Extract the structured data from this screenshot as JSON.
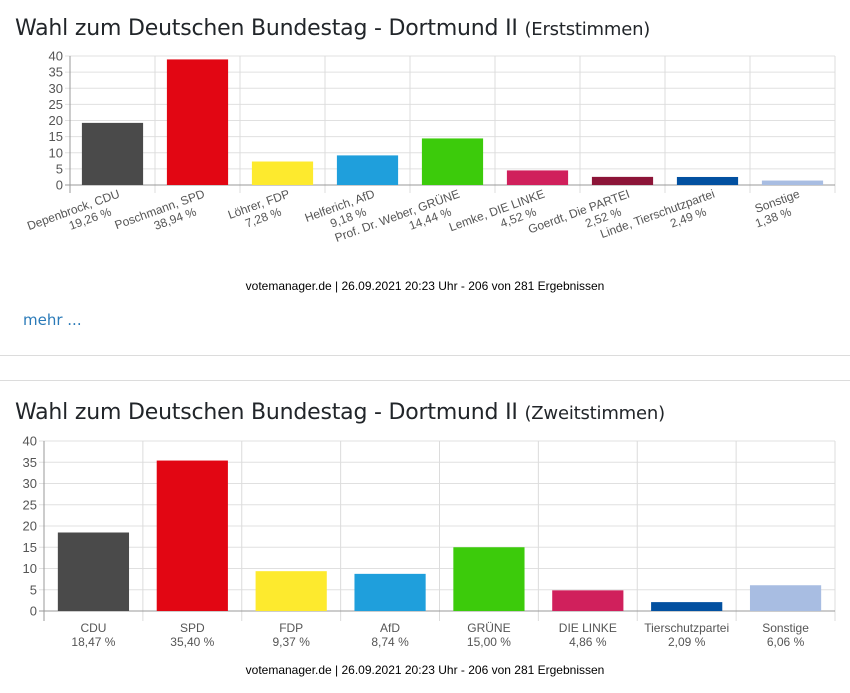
{
  "charts": [
    {
      "title_main": "Wahl zum Deutschen Bundestag - Dortmund II",
      "title_sub": "(Erststimmen)",
      "footer": "votemanager.de | 26.09.2021 20:23 Uhr - 206 von 281 Ergebnissen",
      "more_link": "mehr ..."
    },
    {
      "title_main": "Wahl zum Deutschen Bundestag - Dortmund II",
      "title_sub": "(Zweitstimmen)",
      "footer": "votemanager.de | 26.09.2021 20:23 Uhr - 206 von 281 Ergebnissen"
    }
  ],
  "chart_data": [
    {
      "type": "bar",
      "title": "Wahl zum Deutschen Bundestag - Dortmund II (Erststimmen)",
      "categories": [
        "Depenbrock, CDU",
        "Poschmann, SPD",
        "Löhrer, FDP",
        "Helferich, AfD",
        "Prof. Dr. Weber, GRÜNE",
        "Lemke, DIE LINKE",
        "Goerdt, Die PARTEI",
        "Linde, Tierschutzpartei",
        "Sonstige"
      ],
      "values": [
        19.26,
        38.94,
        7.28,
        9.18,
        14.44,
        4.52,
        2.52,
        2.49,
        1.38
      ],
      "value_labels": [
        "19,26 %",
        "38,94 %",
        "7,28 %",
        "9,18 %",
        "14,44 %",
        "4,52 %",
        "2,52 %",
        "2,49 %",
        "1,38 %"
      ],
      "colors": [
        "#4a4a4a",
        "#e20613",
        "#fdea2e",
        "#1f9fdc",
        "#3ccb0b",
        "#d0205c",
        "#8c1538",
        "#0250a0",
        "#a8bde2"
      ],
      "xlabel": "",
      "ylabel": "",
      "ylim": [
        0,
        40
      ],
      "yticks": [
        0,
        5,
        10,
        15,
        20,
        25,
        30,
        35,
        40
      ],
      "grid": true,
      "label_rotation": "rotated"
    },
    {
      "type": "bar",
      "title": "Wahl zum Deutschen Bundestag - Dortmund II (Zweitstimmen)",
      "categories": [
        "CDU",
        "SPD",
        "FDP",
        "AfD",
        "GRÜNE",
        "DIE LINKE",
        "Tierschutzpartei",
        "Sonstige"
      ],
      "values": [
        18.47,
        35.4,
        9.37,
        8.74,
        15.0,
        4.86,
        2.09,
        6.06
      ],
      "value_labels": [
        "18,47 %",
        "35,40 %",
        "9,37 %",
        "8,74 %",
        "15,00 %",
        "4,86 %",
        "2,09 %",
        "6,06 %"
      ],
      "colors": [
        "#4a4a4a",
        "#e20613",
        "#fdea2e",
        "#1f9fdc",
        "#3ccb0b",
        "#d0205c",
        "#0250a0",
        "#a8bde2"
      ],
      "xlabel": "",
      "ylabel": "",
      "ylim": [
        0,
        40
      ],
      "yticks": [
        0,
        5,
        10,
        15,
        20,
        25,
        30,
        35,
        40
      ],
      "grid": true,
      "label_rotation": "horizontal"
    }
  ]
}
